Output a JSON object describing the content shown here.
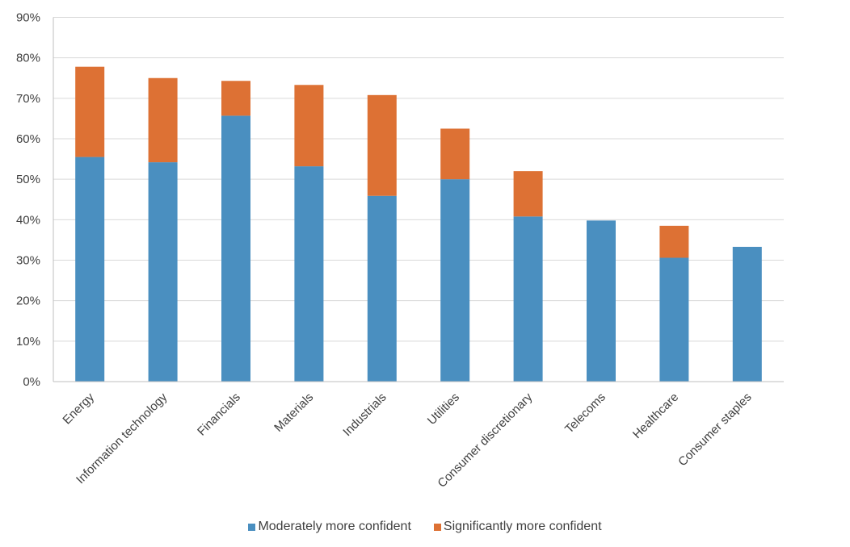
{
  "chart_data": {
    "type": "bar",
    "stacked": true,
    "title": "",
    "xlabel": "",
    "ylabel": "",
    "ylim": [
      0,
      90
    ],
    "y_tick_step": 10,
    "y_tick_format": "percent",
    "y_ticks": [
      "0%",
      "10%",
      "20%",
      "30%",
      "40%",
      "50%",
      "60%",
      "70%",
      "80%",
      "90%"
    ],
    "grid": true,
    "legend_position": "bottom",
    "categories": [
      "Energy",
      "Information technology",
      "Financials",
      "Materials",
      "Industrials",
      "Utilities",
      "Consumer discretionary",
      "Telecoms",
      "Healthcare",
      "Consumer staples"
    ],
    "series": [
      {
        "name": "Moderately more confident",
        "color": "#4A8FC0",
        "values": [
          55.5,
          54.2,
          65.7,
          53.2,
          45.9,
          50.0,
          40.8,
          39.8,
          30.6,
          33.3
        ]
      },
      {
        "name": "Significantly more confident",
        "color": "#DD7134",
        "values": [
          22.3,
          20.8,
          8.6,
          20.1,
          24.9,
          12.5,
          11.2,
          0,
          7.9,
          0
        ]
      }
    ]
  },
  "colors": {
    "gridline": "#D9D9D9",
    "axis": "#BFBFBF",
    "text": "#404040"
  }
}
